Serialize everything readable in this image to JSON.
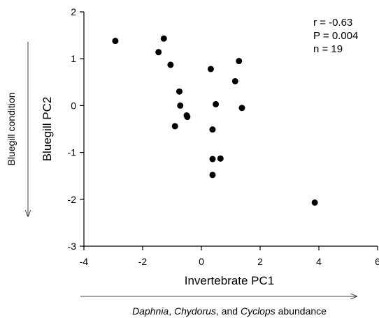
{
  "chart_data": {
    "type": "scatter",
    "title": "",
    "xlabel": "Invertebrate PC1",
    "ylabel": "Bluegill PC2",
    "xlim": [
      -4,
      6
    ],
    "ylim": [
      -3,
      2
    ],
    "xticks": [
      -4,
      -2,
      0,
      2,
      4,
      6
    ],
    "yticks": [
      -3,
      -2,
      -1,
      0,
      1,
      2
    ],
    "grid": false,
    "legend": "none",
    "x_arrow_label": {
      "italic_1": "Daphnia",
      "sep_1": ", ",
      "italic_2": "Chydorus",
      "sep_2": ", and ",
      "italic_3": "Cyclops",
      "rest": " abundance"
    },
    "y_arrow_label": "Bluegill condition",
    "annotations": [
      "r = -0.63",
      "P = 0.004",
      "n = 19"
    ],
    "point_color": "#000000",
    "points": [
      {
        "x": -2.93,
        "y": 1.38
      },
      {
        "x": -1.28,
        "y": 1.43
      },
      {
        "x": -1.46,
        "y": 1.14
      },
      {
        "x": -1.05,
        "y": 0.87
      },
      {
        "x": -0.75,
        "y": 0.3
      },
      {
        "x": -0.72,
        "y": 0.0
      },
      {
        "x": -0.5,
        "y": -0.21
      },
      {
        "x": -0.48,
        "y": -0.24
      },
      {
        "x": -0.9,
        "y": -0.44
      },
      {
        "x": 0.32,
        "y": 0.78
      },
      {
        "x": 0.38,
        "y": -0.51
      },
      {
        "x": 0.38,
        "y": -1.14
      },
      {
        "x": 0.65,
        "y": -1.13
      },
      {
        "x": 0.38,
        "y": -1.48
      },
      {
        "x": 0.49,
        "y": 0.03
      },
      {
        "x": 1.15,
        "y": 0.52
      },
      {
        "x": 1.28,
        "y": 0.95
      },
      {
        "x": 1.38,
        "y": -0.05
      },
      {
        "x": 3.86,
        "y": -2.07
      }
    ]
  }
}
